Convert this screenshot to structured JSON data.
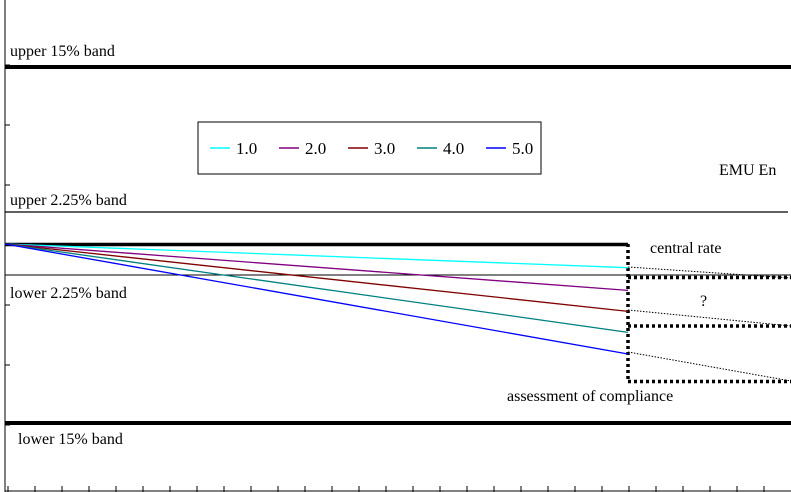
{
  "chart_data": {
    "type": "line",
    "title": "",
    "xlabel": "",
    "ylabel": "",
    "x": [
      0,
      1
    ],
    "series": [
      {
        "name": "1.0",
        "color": "#00ffff",
        "values": [
          0,
          -0.44
        ]
      },
      {
        "name": "2.0",
        "color": "#800080",
        "values": [
          0,
          -0.86
        ]
      },
      {
        "name": "3.0",
        "color": "#800000",
        "values": [
          0,
          -1.25
        ]
      },
      {
        "name": "4.0",
        "color": "#008080",
        "values": [
          0,
          -1.64
        ]
      },
      {
        "name": "5.0",
        "color": "#0000ff",
        "values": [
          0,
          -2.04
        ]
      }
    ],
    "legend": {
      "placement": "top-left"
    },
    "bands": {
      "upper_15": {
        "label": "upper 15% band",
        "value": 3.4
      },
      "upper_2_25": {
        "label": "upper 2.25% band",
        "value": 0.6
      },
      "central": {
        "label": "central rate",
        "value": 0
      },
      "lower_2_25": {
        "label": "lower 2.25% band",
        "value": -0.6
      },
      "lower_15": {
        "label": "lower 15% band",
        "value": -3.4
      }
    },
    "annotations": {
      "emu_entry": "EMU En",
      "question": "?",
      "assessment": "assessment of compliance"
    },
    "grid": false
  }
}
